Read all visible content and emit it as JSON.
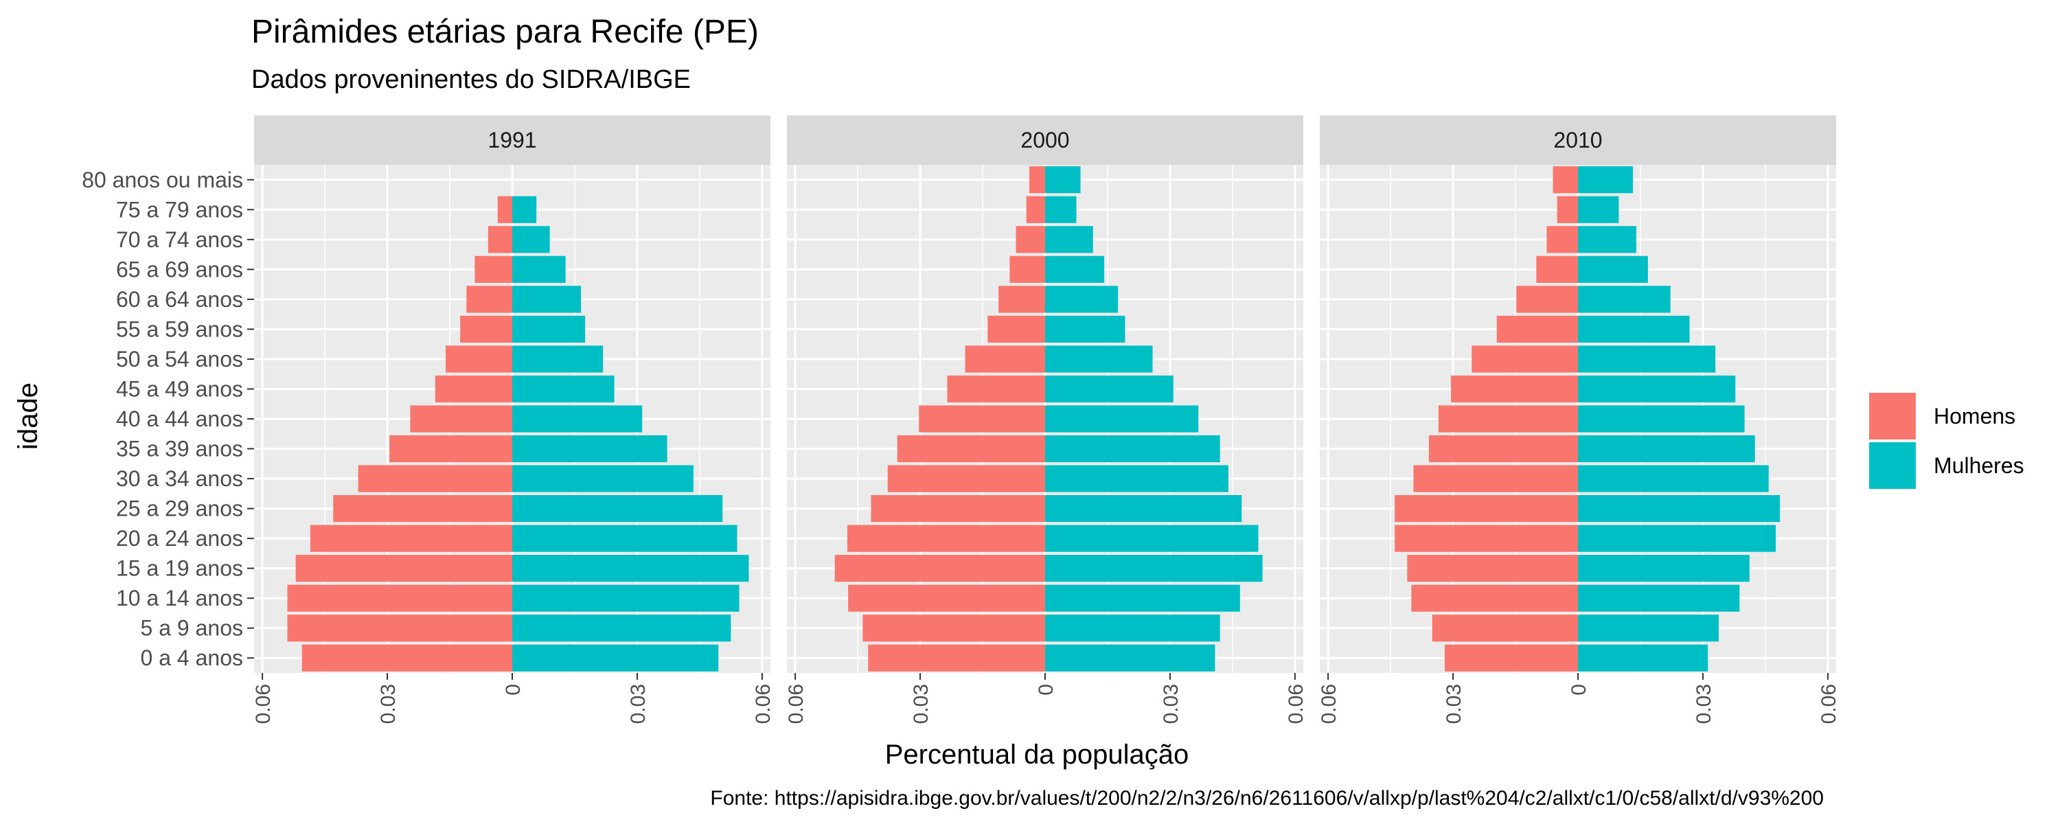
{
  "chart_data": {
    "type": "bar",
    "title": "Pirâmides etárias para Recife (PE)",
    "subtitle": "Dados proveninentes do SIDRA/IBGE",
    "xlabel": "Percentual da população",
    "ylabel": "idade",
    "caption": "Fonte: https://apisidra.ibge.gov.br/values/t/200/n2/2/n3/26/n6/2611606/v/allxp/p/last%204/c2/allxt/c1/0/c58/allxt/d/v93%200",
    "xlim": [
      -0.062,
      0.062
    ],
    "x_ticks": [
      -0.06,
      -0.03,
      0,
      0.03,
      0.06
    ],
    "x_tick_labels": [
      "0.06",
      "0.03",
      "0",
      "0.03",
      "0.06"
    ],
    "categories": [
      "0 a 4 anos",
      "5 a 9 anos",
      "10 a 14 anos",
      "15 a 19 anos",
      "20 a 24 anos",
      "25 a 29 anos",
      "30 a 34 anos",
      "35 a 39 anos",
      "40 a 44 anos",
      "45 a 49 anos",
      "50 a 54 anos",
      "55 a 59 anos",
      "60 a 64 anos",
      "65 a 69 anos",
      "70 a 74 anos",
      "75 a 79 anos",
      "80 anos ou mais"
    ],
    "legend": {
      "placement": "right",
      "entries": [
        {
          "name": "Homens",
          "color": "#F8766D"
        },
        {
          "name": "Mulheres",
          "color": "#00BFC4"
        }
      ]
    },
    "colors": {
      "panel_bg": "#EBEBEB",
      "strip_bg": "#D9D9D9",
      "grid": "#FFFFFF"
    },
    "panels": [
      {
        "label": "1991",
        "series": [
          {
            "name": "Homens",
            "values": [
              -0.0505,
              -0.054,
              -0.054,
              -0.052,
              -0.0485,
              -0.043,
              -0.037,
              -0.0295,
              -0.0245,
              -0.0185,
              -0.016,
              -0.0125,
              -0.011,
              -0.009,
              -0.0058,
              -0.0035,
              0
            ]
          },
          {
            "name": "Mulheres",
            "values": [
              0.0495,
              0.0525,
              0.0545,
              0.0568,
              0.054,
              0.0505,
              0.0435,
              0.0372,
              0.0312,
              0.0245,
              0.0218,
              0.0175,
              0.0165,
              0.0128,
              0.009,
              0.0058,
              0
            ]
          }
        ]
      },
      {
        "label": "2000",
        "series": [
          {
            "name": "Homens",
            "values": [
              -0.0425,
              -0.0438,
              -0.0473,
              -0.0505,
              -0.0475,
              -0.0418,
              -0.0378,
              -0.0355,
              -0.0303,
              -0.0235,
              -0.0192,
              -0.0138,
              -0.0112,
              -0.0085,
              -0.007,
              -0.0045,
              -0.0038
            ]
          },
          {
            "name": "Mulheres",
            "values": [
              0.0408,
              0.042,
              0.0468,
              0.0522,
              0.0512,
              0.0472,
              0.044,
              0.042,
              0.0368,
              0.0308,
              0.0258,
              0.0192,
              0.0175,
              0.0142,
              0.0115,
              0.0075,
              0.0085
            ]
          }
        ]
      },
      {
        "label": "2010",
        "series": [
          {
            "name": "Homens",
            "values": [
              -0.032,
              -0.035,
              -0.04,
              -0.041,
              -0.044,
              -0.044,
              -0.0395,
              -0.0358,
              -0.0335,
              -0.0305,
              -0.0255,
              -0.0195,
              -0.0148,
              -0.01,
              -0.0075,
              -0.005,
              -0.006
            ]
          },
          {
            "name": "Mulheres",
            "values": [
              0.0312,
              0.0338,
              0.0388,
              0.0412,
              0.0475,
              0.0485,
              0.0458,
              0.0425,
              0.04,
              0.0378,
              0.033,
              0.0268,
              0.0222,
              0.0168,
              0.014,
              0.0098,
              0.0132
            ]
          }
        ]
      }
    ]
  }
}
